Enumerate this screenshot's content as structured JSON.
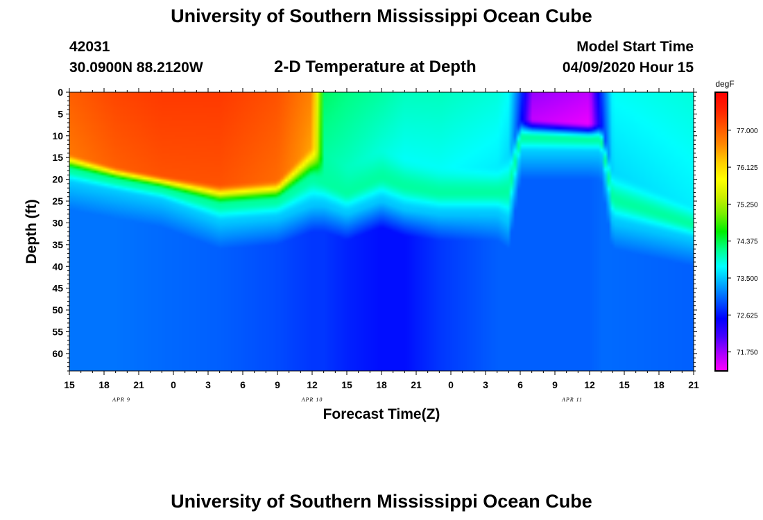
{
  "header": {
    "title": "University of Southern Mississippi Ocean Cube",
    "station_id": "42031",
    "coords": "30.0900N 88.2120W",
    "chart_title": "2-D Temperature at Depth",
    "model_label": "Model Start Time",
    "model_time": "04/09/2020 Hour 15"
  },
  "footer": {
    "title": "University of Southern Mississippi Ocean Cube"
  },
  "chart_data": {
    "type": "heatmap",
    "title": "2-D Temperature at Depth",
    "xlabel": "Forecast Time(Z)",
    "ylabel": "Depth (ft)",
    "x_range_hours": [
      0,
      54
    ],
    "x_tick_labels": [
      "15",
      "18",
      "21",
      "0",
      "3",
      "6",
      "9",
      "12",
      "15",
      "18",
      "21",
      "0",
      "3",
      "6",
      "9",
      "12",
      "15",
      "18",
      "21"
    ],
    "date_labels": [
      {
        "label": "APR 9",
        "hour": 4.5
      },
      {
        "label": "APR 10",
        "hour": 21
      },
      {
        "label": "APR 11",
        "hour": 43.5
      }
    ],
    "y_range_ft": [
      0,
      64
    ],
    "y_tick_labels": [
      "0",
      "5",
      "10",
      "15",
      "20",
      "25",
      "30",
      "35",
      "40",
      "45",
      "50",
      "55",
      "60"
    ],
    "y_ticks": [
      0,
      5,
      10,
      15,
      20,
      25,
      30,
      35,
      40,
      45,
      50,
      55,
      60
    ],
    "colorbar": {
      "unit": "degF",
      "range": [
        71.3,
        77.9
      ],
      "labels": [
        "77.000",
        "76.125",
        "75.250",
        "74.375",
        "73.500",
        "72.625",
        "71.750"
      ],
      "values": [
        77.0,
        76.125,
        75.25,
        74.375,
        73.5,
        72.625,
        71.75
      ],
      "colors": [
        "#ff00ff",
        "#aa00ff",
        "#4400ff",
        "#0000ff",
        "#0055ff",
        "#00aaff",
        "#00ffff",
        "#00ff88",
        "#00ee00",
        "#77ee00",
        "#ccee00",
        "#ffff00",
        "#ffcc00",
        "#ff8800",
        "#ff5500",
        "#ff2200",
        "#ff0000"
      ]
    },
    "profiles": [
      {
        "hour": 0,
        "surface_temp": 77.0,
        "surface_layer_ft": 14,
        "thermocline_ft": 21,
        "deep_temp": 73.1
      },
      {
        "hour": 4,
        "surface_temp": 77.2,
        "surface_layer_ft": 17,
        "thermocline_ft": 23,
        "deep_temp": 73.1
      },
      {
        "hour": 8,
        "surface_temp": 77.3,
        "surface_layer_ft": 19,
        "thermocline_ft": 25,
        "deep_temp": 73.05
      },
      {
        "hour": 13,
        "surface_temp": 77.3,
        "surface_layer_ft": 21,
        "thermocline_ft": 30,
        "deep_temp": 73.0
      },
      {
        "hour": 18,
        "surface_temp": 77.1,
        "surface_layer_ft": 20,
        "thermocline_ft": 29,
        "deep_temp": 72.9
      },
      {
        "hour": 21,
        "surface_temp": 76.7,
        "surface_layer_ft": 12,
        "thermocline_ft": 26,
        "deep_temp": 72.8
      },
      {
        "hour": 22,
        "surface_temp": 74.3,
        "surface_layer_ft": 14,
        "thermocline_ft": 26,
        "deep_temp": 72.8
      },
      {
        "hour": 24,
        "surface_temp": 74.2,
        "surface_layer_ft": 17,
        "thermocline_ft": 28,
        "deep_temp": 72.7
      },
      {
        "hour": 27,
        "surface_temp": 74.1,
        "surface_layer_ft": 13,
        "thermocline_ft": 25,
        "deep_temp": 72.6
      },
      {
        "hour": 29,
        "surface_temp": 74.0,
        "surface_layer_ft": 15,
        "thermocline_ft": 27,
        "deep_temp": 72.6
      },
      {
        "hour": 32,
        "surface_temp": 74.0,
        "surface_layer_ft": 17,
        "thermocline_ft": 28,
        "deep_temp": 72.8
      },
      {
        "hour": 37,
        "surface_temp": 73.9,
        "surface_layer_ft": 17,
        "thermocline_ft": 28,
        "deep_temp": 73.0
      },
      {
        "hour": 38,
        "surface_temp": 73.8,
        "surface_layer_ft": 14,
        "thermocline_ft": 30,
        "deep_temp": 73.0
      },
      {
        "hour": 39,
        "surface_temp": 72.9,
        "surface_layer_ft": 6,
        "thermocline_ft": 14,
        "deep_temp": 73.0
      },
      {
        "hour": 40,
        "surface_temp": 71.8,
        "surface_layer_ft": 6,
        "thermocline_ft": 14,
        "deep_temp": 73.0
      },
      {
        "hour": 45,
        "surface_temp": 71.6,
        "surface_layer_ft": 7,
        "thermocline_ft": 14,
        "deep_temp": 73.0
      },
      {
        "hour": 46,
        "surface_temp": 72.8,
        "surface_layer_ft": 7,
        "thermocline_ft": 14,
        "deep_temp": 73.05
      },
      {
        "hour": 47,
        "surface_temp": 73.8,
        "surface_layer_ft": 18,
        "thermocline_ft": 30,
        "deep_temp": 73.05
      },
      {
        "hour": 54,
        "surface_temp": 73.9,
        "surface_layer_ft": 26,
        "thermocline_ft": 34,
        "deep_temp": 73.0
      }
    ],
    "thermocline_temp": 74.1,
    "subsurface_temp": 73.5
  }
}
